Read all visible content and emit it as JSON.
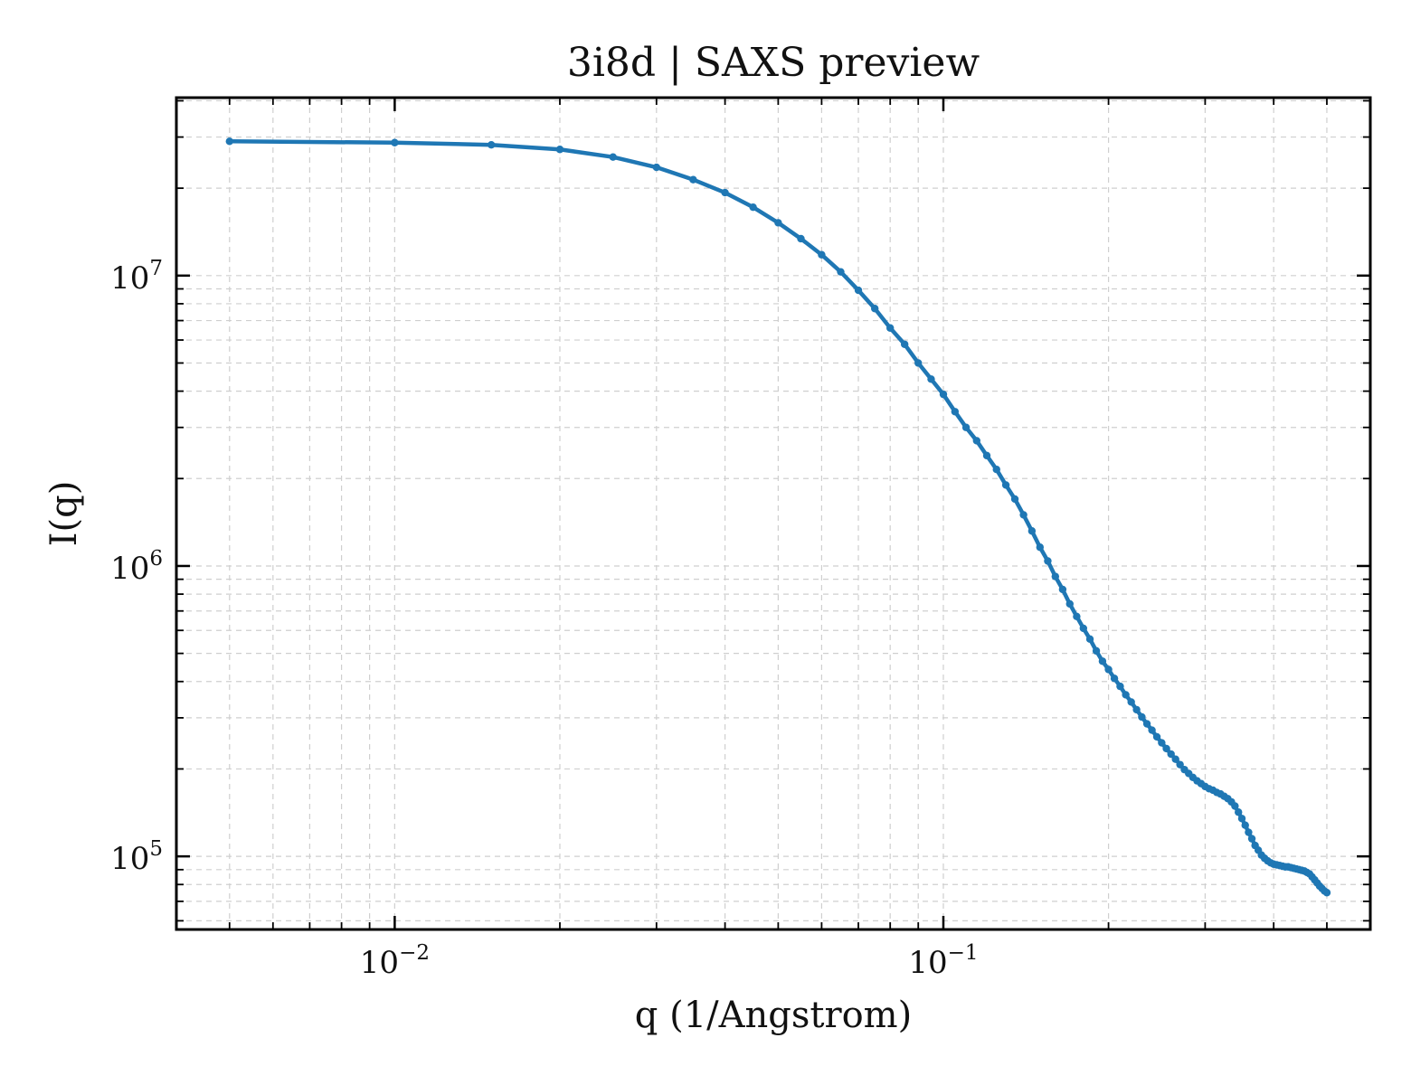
{
  "chart_data": {
    "type": "line",
    "title": "3i8d | SAXS preview",
    "xlabel": "q (1/Angstrom)",
    "ylabel": "I(q)",
    "xscale": "log",
    "yscale": "log",
    "xlim": [
      0.004,
      0.6
    ],
    "ylim": [
      56000,
      41000000
    ],
    "x_ticks": [
      {
        "value": 0.01,
        "base": "10",
        "exp": "−2"
      },
      {
        "value": 0.1,
        "base": "10",
        "exp": "−1"
      }
    ],
    "y_ticks": [
      {
        "value": 100000,
        "base": "10",
        "exp": "5"
      },
      {
        "value": 1000000,
        "base": "10",
        "exp": "6"
      },
      {
        "value": 10000000,
        "base": "10",
        "exp": "7"
      }
    ],
    "grid": true,
    "line_color": "#1f77b4",
    "series": [
      {
        "marker": "circle",
        "x": [
          0.005,
          0.01,
          0.015,
          0.02,
          0.025,
          0.03,
          0.035,
          0.04,
          0.045,
          0.05,
          0.055,
          0.06,
          0.065,
          0.07,
          0.075,
          0.08,
          0.085,
          0.09,
          0.095,
          0.1,
          0.105,
          0.11,
          0.115,
          0.12,
          0.125,
          0.13,
          0.135,
          0.14,
          0.145,
          0.15,
          0.155,
          0.16,
          0.165,
          0.17,
          0.175,
          0.18,
          0.185,
          0.19,
          0.195,
          0.2,
          0.205,
          0.21,
          0.215,
          0.22,
          0.225,
          0.23,
          0.235,
          0.24,
          0.245,
          0.25,
          0.255,
          0.26,
          0.265,
          0.27,
          0.275,
          0.28,
          0.285,
          0.29,
          0.295,
          0.3,
          0.305,
          0.31,
          0.315,
          0.32,
          0.325,
          0.33,
          0.335,
          0.34,
          0.345,
          0.35,
          0.355,
          0.36,
          0.365,
          0.37,
          0.375,
          0.38,
          0.385,
          0.39,
          0.395,
          0.4,
          0.405,
          0.41,
          0.415,
          0.42,
          0.425,
          0.43,
          0.435,
          0.44,
          0.445,
          0.45,
          0.455,
          0.46,
          0.465,
          0.47,
          0.475,
          0.48,
          0.485,
          0.49,
          0.495,
          0.5
        ],
        "y": [
          29000000,
          28700000,
          28200000,
          27200000,
          25600000,
          23600000,
          21400000,
          19300000,
          17200000,
          15200000,
          13400000,
          11800000,
          10300000,
          8900000,
          7700000,
          6600000,
          5800000,
          5000000,
          4400000,
          3900000,
          3400000,
          3000000,
          2700000,
          2400000,
          2150000,
          1900000,
          1700000,
          1500000,
          1320000,
          1160000,
          1040000,
          920000,
          830000,
          740000,
          670000,
          610000,
          560000,
          510000,
          470000,
          440000,
          410000,
          385000,
          360000,
          340000,
          320000,
          302000,
          286000,
          272000,
          258000,
          246000,
          235000,
          225000,
          216000,
          207000,
          199000,
          193000,
          187000,
          182000,
          178000,
          174000,
          171000,
          169000,
          166000,
          164000,
          161000,
          158000,
          154000,
          149000,
          142000,
          135000,
          128000,
          121000,
          115000,
          109000,
          105000,
          101000,
          98500,
          96500,
          95000,
          94000,
          93500,
          93000,
          92500,
          92000,
          92000,
          91500,
          91000,
          90500,
          90000,
          89500,
          89000,
          88000,
          87000,
          85000,
          83000,
          81000,
          79000,
          77500,
          76000,
          75000
        ]
      }
    ]
  }
}
